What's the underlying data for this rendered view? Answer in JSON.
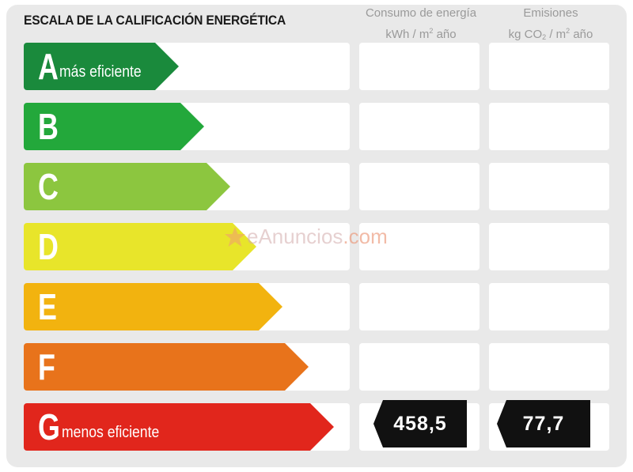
{
  "title": "ESCALA DE LA CALIFICACIÓN ENERGÉTICA",
  "col_energy": {
    "line1": "Consumo de energía",
    "line2a": "kWh / m",
    "line2sup": "2",
    "line2b": " año"
  },
  "col_emissions": {
    "line1": "Emisiones",
    "line2a": "kg CO",
    "line2sub": "2",
    "line2b": " / m",
    "line2sup": "2",
    "line2c": " año"
  },
  "ratings": [
    {
      "letter": "A",
      "label": "más eficiente",
      "color": "#1a8a3c"
    },
    {
      "letter": "B",
      "label": "",
      "color": "#23a83b"
    },
    {
      "letter": "C",
      "label": "",
      "color": "#8cc63f"
    },
    {
      "letter": "D",
      "label": "",
      "color": "#e8e52a"
    },
    {
      "letter": "E",
      "label": "",
      "color": "#f2b30f"
    },
    {
      "letter": "F",
      "label": "",
      "color": "#e8731b"
    },
    {
      "letter": "G",
      "label": "menos eficiente",
      "color": "#e1261c"
    }
  ],
  "energy_value": "458,5",
  "emissions_value": "77,7",
  "watermark": {
    "part1": "eAnuncios",
    "part2": ".com"
  }
}
